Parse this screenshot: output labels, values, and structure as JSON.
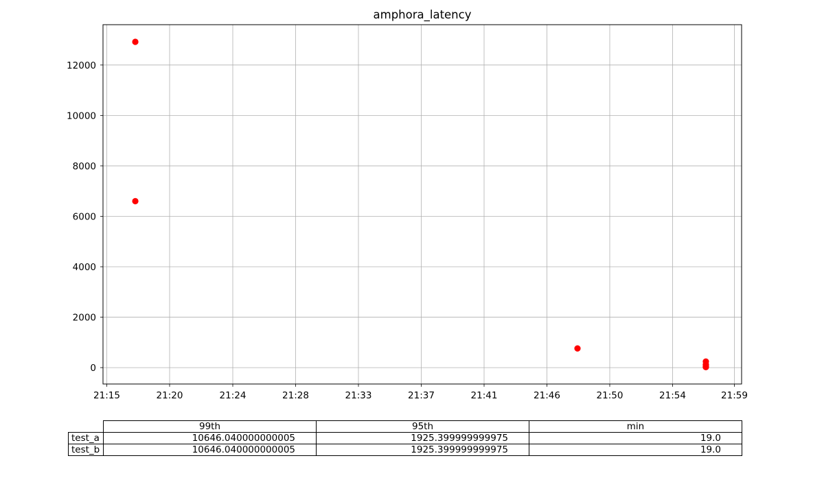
{
  "chart_data": {
    "type": "scatter",
    "title": "amphora_latency",
    "xlabel": "",
    "ylabel": "",
    "x_tick_labels": [
      "21:15",
      "21:20",
      "21:24",
      "21:28",
      "21:33",
      "21:37",
      "21:41",
      "21:46",
      "21:50",
      "21:54",
      "21:59"
    ],
    "y_ticks": [
      0,
      2000,
      4000,
      6000,
      8000,
      10000,
      12000
    ],
    "ylim": [
      -650,
      13600
    ],
    "xlim": [
      "21:15",
      "21:59"
    ],
    "grid": true,
    "marker_color": "#ff0000",
    "points": [
      {
        "x": "21:17",
        "y": 12920
      },
      {
        "x": "21:17",
        "y": 6600
      },
      {
        "x": "21:48",
        "y": 760
      },
      {
        "x": "21:57",
        "y": 240
      },
      {
        "x": "21:57",
        "y": 120
      },
      {
        "x": "21:57",
        "y": 60
      },
      {
        "x": "21:57",
        "y": 30
      },
      {
        "x": "21:57",
        "y": 19
      }
    ]
  },
  "table": {
    "columns": [
      "99th",
      "95th",
      "min"
    ],
    "rows": [
      {
        "label": "test_a",
        "values": [
          "10646.040000000005",
          "1925.399999999975",
          "19.0"
        ]
      },
      {
        "label": "test_b",
        "values": [
          "10646.040000000005",
          "1925.399999999975",
          "19.0"
        ]
      }
    ]
  }
}
